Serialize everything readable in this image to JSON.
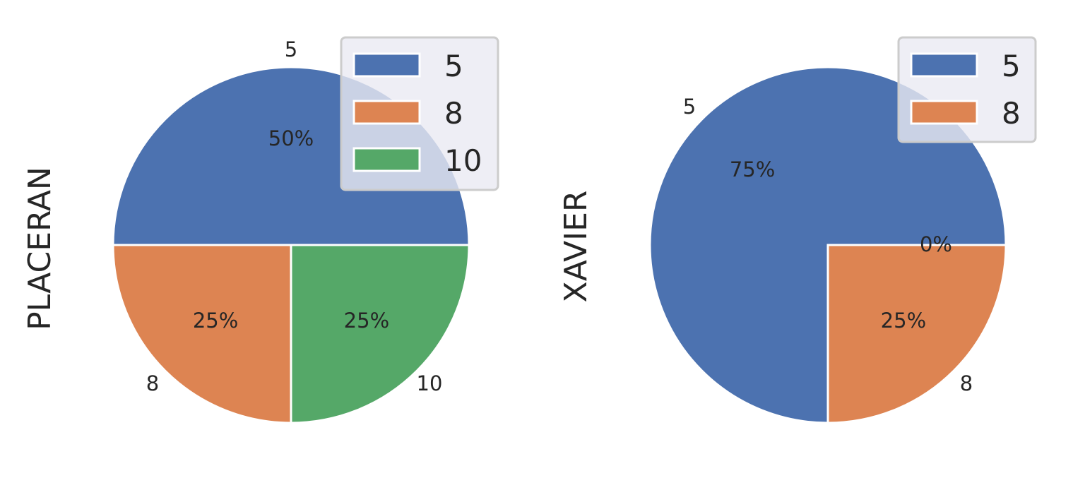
{
  "chart_data": [
    {
      "type": "pie",
      "ylabel": "PLACERAN",
      "categories": [
        "5",
        "8",
        "10"
      ],
      "values": [
        50,
        25,
        25
      ],
      "percent_labels": [
        "50%",
        "25%",
        "25%"
      ],
      "colors": [
        "#4c72b0",
        "#dd8452",
        "#55a868"
      ],
      "legend": {
        "placement": "upper-right",
        "entries": [
          "5",
          "8",
          "10"
        ]
      }
    },
    {
      "type": "pie",
      "ylabel": "XAVIER",
      "categories": [
        "5",
        "8"
      ],
      "values": [
        75,
        25
      ],
      "percent_labels": [
        "75%",
        "25%"
      ],
      "extra_label": "0%",
      "colors": [
        "#4c72b0",
        "#dd8452"
      ],
      "legend": {
        "placement": "upper-right",
        "entries": [
          "5",
          "8"
        ]
      }
    }
  ]
}
